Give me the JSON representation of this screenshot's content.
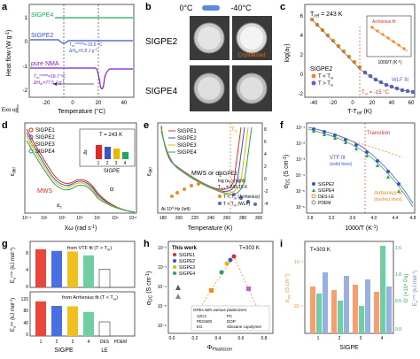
{
  "panels": {
    "a": {
      "label": "a",
      "ylabel": "Heat flow (W g",
      "ylabel_sup": "-1",
      "ylabel_close": ")",
      "xlabel": "Temperature (°C)",
      "exo": "Exo up",
      "ticks_x": [
        "-20",
        "0",
        "20",
        "40"
      ],
      "ticks_y": [
        "1",
        "0",
        "-1",
        "-2"
      ],
      "series": [
        "SIGPE4",
        "SIGPE2",
        "pure NMA"
      ],
      "colors": [
        "#27a35a",
        "#3b53c4",
        "#7b1fc9"
      ],
      "ann_sigpe2_line1": "T",
      "ann_sigpe2_sub1": "m",
      "ann_sigpe2_sup1": "onset",
      "ann_sigpe2_val1": "=-15.5 °C",
      "ann_sigpe2_line2": "ΔH",
      "ann_sigpe2_sub2": "m",
      "ann_sigpe2_val2": "=5.8 J g",
      "ann_sigpe2_unit2": "-1",
      "ann_nma_line1": "T",
      "ann_nma_sub1": "m",
      "ann_nma_sup1": "onset",
      "ann_nma_val1": "=18.7 °C",
      "ann_nma_line2": "ΔH",
      "ann_nma_sub2": "m",
      "ann_nma_val2": "=77.5 J g",
      "ann_nma_unit2": "-1"
    },
    "b": {
      "label": "b",
      "temp_left": "0°C",
      "temp_right": "-40°C",
      "row1": "SIGPE2",
      "row2": "SIGPE4",
      "crystallized": "Crystallized"
    },
    "c": {
      "label": "c",
      "title_T": "T",
      "title_sub": "ref",
      "title_val": " = 243 K",
      "ylabel": "log(a",
      "ylabel_sub": "T",
      "ylabel_close": ")",
      "xlabel": "T-T",
      "xlabel_sub": "ref",
      "xlabel_unit": " (K)",
      "legend_name": "SIGPE2",
      "legend1": "T < T",
      "legend1_sub": "m",
      "legend2": "T > T",
      "legend2_sub": "m",
      "tm_label": "T",
      "tm_sub": "m",
      "tm_val": " = -15 °C",
      "inset_legend": "Arrhenius fit",
      "inset_fit": "WLF fit",
      "inset_ylabel": "log(a",
      "inset_xlabel": "1000/T (K",
      "inset_xlabel_sup": "-1",
      "ticks_x": [
        "-40",
        "-20",
        "0",
        "20",
        "40",
        "60"
      ],
      "ticks_y": [
        "6",
        "4",
        "2",
        "0",
        "-2"
      ],
      "inset_ticks_x": [
        "3.6",
        "4.0"
      ],
      "inset_ticks_y": [
        "6",
        "4",
        "2",
        "0"
      ]
    },
    "d": {
      "label": "d",
      "ylabel": "ε",
      "ylabel_sub": "der",
      "xlabel": "Xω (rad s",
      "xlabel_sup": "-1",
      "xlabel_close": ")",
      "series": [
        "SIGPE1",
        "SIGPE2",
        "SIGPE3",
        "SIGPE4"
      ],
      "colors": [
        "#d93025",
        "#3b53c4",
        "#e8b800",
        "#27a35a"
      ],
      "temp": "T = 243 K",
      "inset_ylabel": "Δε",
      "inset_xlabel": "SIGPE",
      "inset_ticks": [
        "1",
        "2",
        "3",
        "4"
      ],
      "mws": "MWS",
      "alpha": "α",
      "alpha2": "α",
      "alpha2_sub": "2",
      "ticks_x": [
        "10⁻¹",
        "10¹",
        "10³",
        "10⁵",
        "10⁷",
        "10⁹",
        "10¹¹"
      ]
    },
    "e": {
      "label": "e",
      "ylabel": "ε",
      "ylabel_sub": "der",
      "xlabel": "Temperature (K)",
      "series": [
        "SIGPE1",
        "SIGPE2",
        "SIGPE3",
        "SIGPE4"
      ],
      "colors": [
        "#d93025",
        "#3b53c4",
        "#e8b800",
        "#27a35a"
      ],
      "mws": "MWS",
      "mws_or": "or α",
      "mws_sub": "2",
      "at": "At 10",
      "at_sup": "4",
      "at_unit": " Hz (left)",
      "tm": "T",
      "tm_sub": "m",
      "sig_name": "SIGPE2",
      "sig_t": "log (a",
      "sig_t_sub": "T",
      "sig_t_close": ") (right)",
      "sig_ref": "T",
      "sig_ref_sub": "ref",
      "sig_ref_val": " = 243.15 K",
      "leg1": "T < T",
      "leg1_sub": "m",
      "leg1_fit": " (Arrhenius)",
      "leg2": "T > T",
      "leg2_sub": "m",
      "leg2_fit": " (WLF)",
      "ticks_x": [
        "180",
        "200",
        "220",
        "240",
        "260",
        "280",
        "300"
      ],
      "ticks_y": [
        "",
        "",
        "",
        "",
        "",
        ""
      ],
      "ticks_y_right": [
        "8",
        "6",
        "4",
        "2",
        "0",
        "-2",
        "-4"
      ]
    },
    "f": {
      "label": "f",
      "ylabel": "σ",
      "ylabel_sub": "DC",
      "ylabel_unit": " (S cm",
      "ylabel_sup": "-1",
      "ylabel_close": ")",
      "xlabel": "1000/T (K",
      "xlabel_sup": "-1",
      "xlabel_close": ")",
      "transition": "Transition",
      "vtf": "VTF fit",
      "vtf_sub": "(solid lines)",
      "arr": "Arrhenius fit",
      "arr_sub": "(dashed lines)",
      "legend": [
        "SIGPE2",
        "SIGPE4",
        "DES-LE",
        "PDEM"
      ],
      "ticks_x": [
        "2.8",
        "3.2",
        "3.6",
        "4.0",
        "4.4",
        "4.8"
      ],
      "ticks_y": [
        "10⁻¹",
        "10⁻²",
        "10⁻³",
        "10⁻⁴",
        "10⁻⁵",
        "10⁻⁶"
      ]
    },
    "g": {
      "label": "g",
      "ylabel_top": "E",
      "ylabel_top_sub": "a",
      "ylabel_top_sup": "VTF",
      "ylabel_top_unit": " (kJ mol",
      "ylabel_top_unit_sup": "-1",
      "ylabel_top_close": ")",
      "ylabel_bot": "E",
      "ylabel_bot_sub": "a",
      "ylabel_bot_sup": "Arr",
      "ylabel_bot_unit": " (kJ mol",
      "ylabel_bot_unit_sup": "-1",
      "ylabel_bot_close": ")",
      "top_title": "from VTF fit (T > T",
      "top_title_sub": "m",
      "top_title_close": ")",
      "bot_title": "from Arrhenius fit (T < T",
      "bot_title_sub": "m",
      "bot_title_close": ")",
      "top_vals": [
        6.9,
        6.6,
        6.5,
        5.8,
        3.3
      ],
      "bot_vals": [
        98,
        85,
        84,
        68,
        40
      ],
      "colors": [
        "#e8483c",
        "#4a6fe0",
        "#f0c020",
        "#6fcfa0",
        "#ffffff"
      ],
      "cats": [
        "1",
        "2",
        "3",
        "4",
        "DES",
        "PDEM"
      ],
      "xlabel": "SIGPE",
      "xlabel2": "LE",
      "ticks_top": [
        "8",
        "4",
        "0"
      ],
      "ticks_bot": [
        "120",
        "80",
        "40",
        "0"
      ]
    },
    "h": {
      "label": "h",
      "ylabel": "σ",
      "ylabel_sub": "DC",
      "ylabel_unit": " (S cm",
      "ylabel_sup": "-1",
      "ylabel_close": ")",
      "xlabel": "Φ",
      "xlabel_sub": "Plasticizer",
      "temp": "T=303 K",
      "this_work": "This work",
      "series": [
        "SIGPE1",
        "SIGPE2",
        "SIGPE3",
        "SIGPE4"
      ],
      "gpes_title": "GPEs with various plasticizers",
      "gpes": [
        "12C4",
        "PC",
        "PEG600",
        "DOP",
        "EG",
        "Siloxane copolymer"
      ],
      "ticks_x": [
        "0.0",
        "0.2",
        "0.4",
        "0.6",
        "0.8"
      ],
      "ticks_y": [
        "10⁻²",
        "10⁻³",
        "10⁻⁴",
        "10⁻⁵",
        "10⁻⁶"
      ]
    },
    "i": {
      "label": "i",
      "temp": "T=303 K",
      "ylabel_left": "σ",
      "ylabel_left_sub": "DC",
      "ylabel_left_unit": " (S cm",
      "ylabel_left_sup": "-1",
      "ylabel_left_close": ")",
      "ylabel_mid": "G' (×10",
      "ylabel_mid_sup": "4",
      "ylabel_mid_close": " Pa)",
      "ylabel_right": "E",
      "ylabel_right_sub": "a",
      "ylabel_right_sup": "VTF",
      "ylabel_right_unit": " (kJ mol",
      "ylabel_right_unit_sup": "-1",
      "ylabel_right_close": ")",
      "xlabel": "SIGPE",
      "cats": [
        "1",
        "2",
        "3",
        "4"
      ],
      "ticks_left": [
        "10⁻³",
        "10⁻⁴"
      ],
      "ticks_mid": [
        "1.5",
        "1.0",
        "0.5",
        "0.0"
      ],
      "ticks_right": [
        "8",
        "6",
        "4",
        "2",
        "0"
      ]
    }
  },
  "chart_data": [
    {
      "type": "line",
      "panel": "a",
      "title": "",
      "xlabel": "Temperature (°C)",
      "ylabel": "Heat flow (W g-1)",
      "xlim": [
        -30,
        50
      ],
      "series": [
        {
          "name": "SIGPE4"
        },
        {
          "name": "SIGPE2"
        },
        {
          "name": "pure NMA"
        }
      ]
    },
    {
      "type": "scatter",
      "panel": "c",
      "xlabel": "T-Tref (K)",
      "ylabel": "log(aT)",
      "xlim": [
        -50,
        70
      ],
      "ylim": [
        -3,
        7
      ]
    },
    {
      "type": "line",
      "panel": "d",
      "xlabel": "Xω (rad s-1)",
      "ylabel": "εder",
      "series": [
        {
          "name": "SIGPE1"
        },
        {
          "name": "SIGPE2"
        },
        {
          "name": "SIGPE3"
        },
        {
          "name": "SIGPE4"
        }
      ]
    },
    {
      "type": "line",
      "panel": "e",
      "xlabel": "Temperature (K)",
      "ylabel": "εder",
      "xlim": [
        170,
        310
      ],
      "series": [
        {
          "name": "SIGPE1"
        },
        {
          "name": "SIGPE2"
        },
        {
          "name": "SIGPE3"
        },
        {
          "name": "SIGPE4"
        }
      ]
    },
    {
      "type": "scatter",
      "panel": "f",
      "xlabel": "1000/T (K-1)",
      "ylabel": "σDC (S cm-1)",
      "xlim": [
        2.8,
        4.8
      ],
      "series": [
        {
          "name": "SIGPE2"
        },
        {
          "name": "SIGPE4"
        },
        {
          "name": "DES-LE"
        },
        {
          "name": "PDEM"
        }
      ]
    },
    {
      "type": "bar",
      "panel": "g",
      "categories": [
        "1",
        "2",
        "3",
        "4",
        "DES LE",
        "PDEM"
      ],
      "series": [
        {
          "name": "from VTF fit (T > Tm)",
          "values": [
            6.9,
            6.6,
            6.5,
            5.8,
            3.3,
            0
          ]
        },
        {
          "name": "from Arrhenius fit (T < Tm)",
          "values": [
            98,
            85,
            84,
            68,
            40,
            0
          ]
        }
      ]
    },
    {
      "type": "scatter",
      "panel": "h",
      "xlabel": "ΦPlasticizer",
      "ylabel": "σDC (S cm-1)",
      "xlim": [
        0,
        0.9
      ]
    },
    {
      "type": "bar",
      "panel": "i",
      "categories": [
        "1",
        "2",
        "3",
        "4"
      ],
      "xlabel": "SIGPE"
    }
  ]
}
